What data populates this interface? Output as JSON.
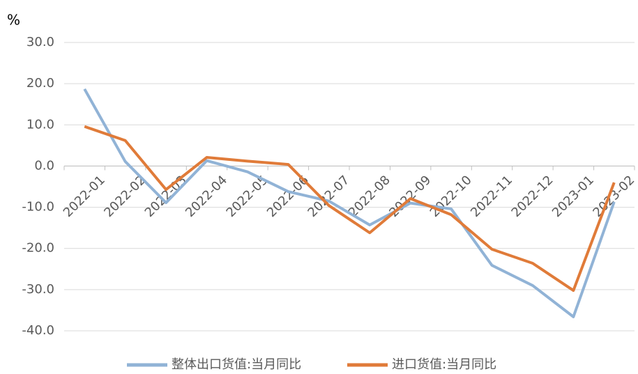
{
  "chart_data": {
    "type": "line",
    "y_unit": "%",
    "categories": [
      "2022-01",
      "2022-02",
      "2022-03",
      "2022-04",
      "2022-05",
      "2022-06",
      "2022-07",
      "2022-08",
      "2022-09",
      "2022-10",
      "2022-11",
      "2022-12",
      "2023-01",
      "2023-02"
    ],
    "series": [
      {
        "name": "整体出口货值:当月同比",
        "color": "#91b3d6",
        "values": [
          18.7,
          1.1,
          -8.9,
          1.3,
          -1.4,
          -6.2,
          -8.5,
          -14.3,
          -9.0,
          -10.4,
          -24.1,
          -29.0,
          -36.6,
          -8.7
        ]
      },
      {
        "name": "进口货值:当月同比",
        "color": "#e07b39",
        "values": [
          9.6,
          6.2,
          -5.7,
          2.1,
          1.2,
          0.4,
          -9.6,
          -16.2,
          -7.9,
          -11.8,
          -20.2,
          -23.6,
          -30.2,
          -4.0
        ]
      }
    ],
    "ylim": [
      -40,
      30
    ],
    "yticks": [
      {
        "value": 30,
        "label": "30.0"
      },
      {
        "value": 20,
        "label": "20.0"
      },
      {
        "value": 10,
        "label": "10.0"
      },
      {
        "value": 0,
        "label": "0.0"
      },
      {
        "value": -10,
        "label": "-10.0"
      },
      {
        "value": -20,
        "label": "-20.0"
      },
      {
        "value": -30,
        "label": "-30.0"
      },
      {
        "value": -40,
        "label": "-40.0"
      }
    ],
    "grid": true,
    "legend": "bottom"
  }
}
